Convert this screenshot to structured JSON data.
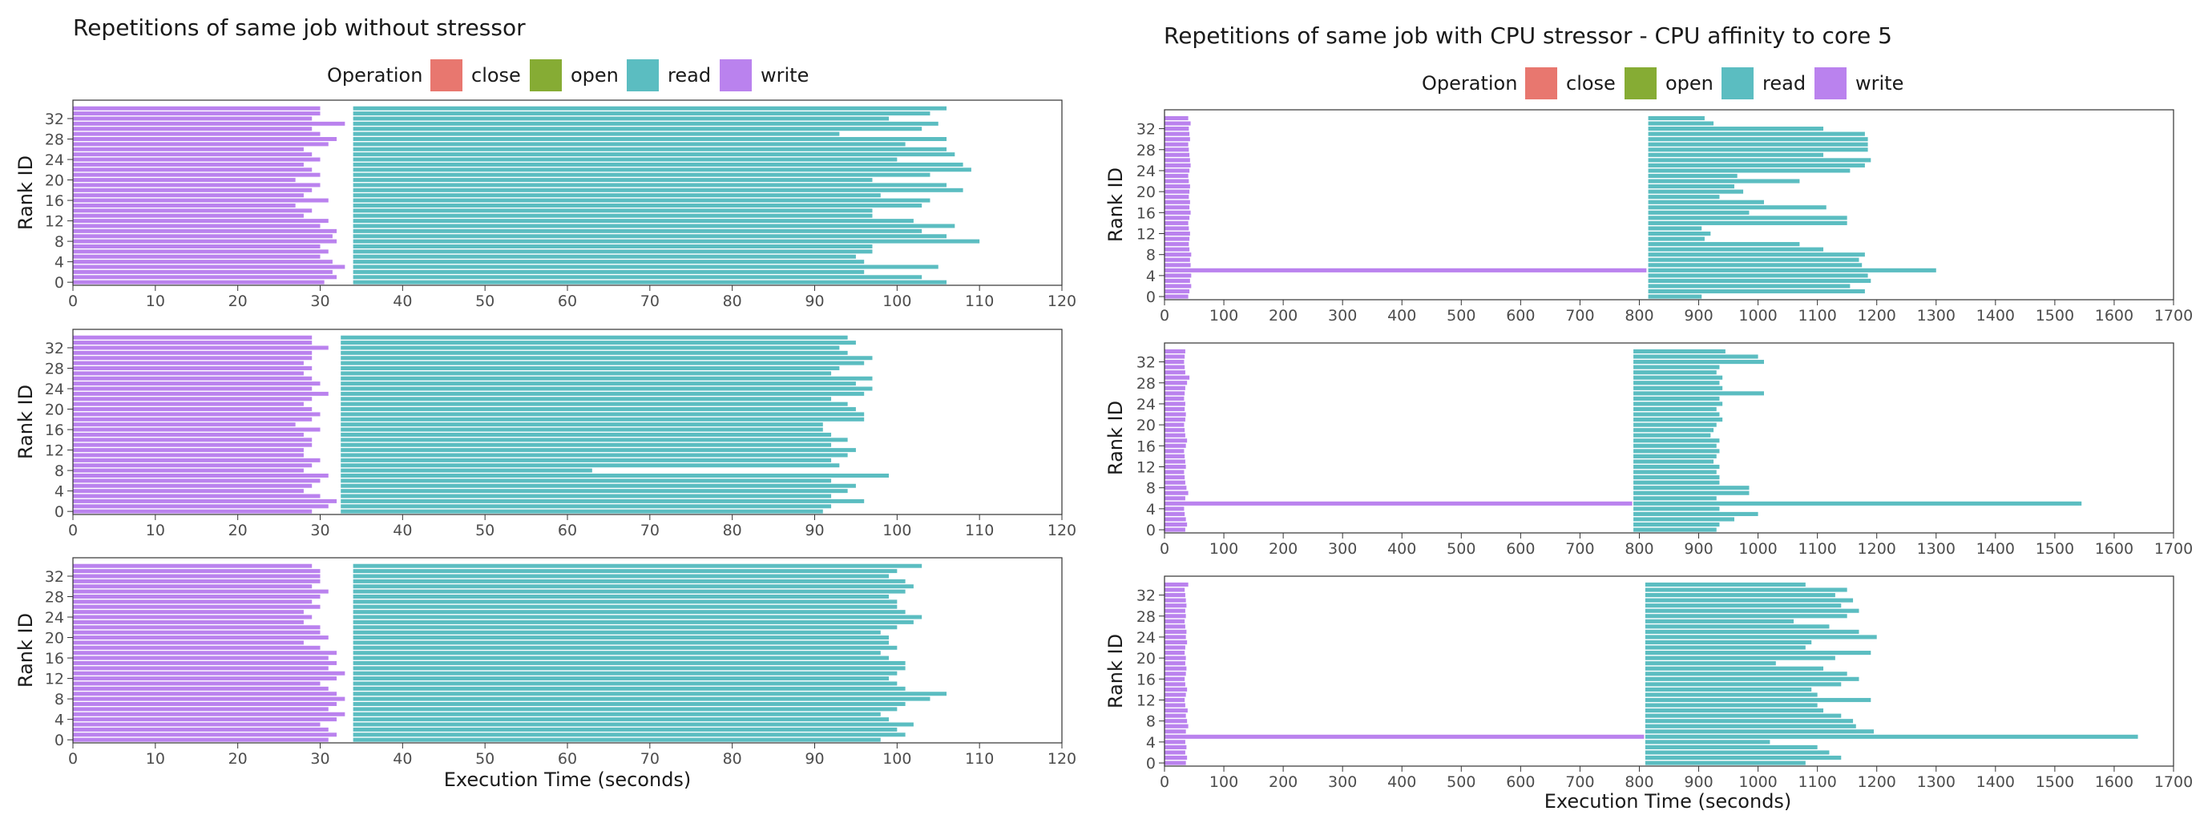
{
  "colors": {
    "close": "#E8776F",
    "open": "#86AC34",
    "read": "#5BBDC1",
    "write": "#BA82EE",
    "axis_text": "#4d4d4d",
    "panel_border": "#333333"
  },
  "legend": {
    "title": "Operation",
    "items": [
      {
        "key": "close",
        "label": "close"
      },
      {
        "key": "open",
        "label": "open"
      },
      {
        "key": "read",
        "label": "read"
      },
      {
        "key": "write",
        "label": "write"
      }
    ]
  },
  "chart_data": [
    {
      "type": "bar",
      "title": "Repetitions of same job without stressor",
      "xlabel": "Execution Time (seconds)",
      "ylabel": "Rank ID",
      "xlim": [
        0,
        120
      ],
      "ylim": [
        -0.6,
        35.6
      ],
      "xticks": [
        0,
        10,
        20,
        30,
        40,
        50,
        60,
        70,
        80,
        90,
        100,
        110,
        120
      ],
      "yticks": [
        0,
        4,
        8,
        12,
        16,
        20,
        24,
        28,
        32
      ],
      "grid": false,
      "legend_position": "top",
      "panels": [
        {
          "write_start": 0,
          "read_start": 34,
          "write_end": [
            30.5,
            32,
            31.5,
            33,
            31.5,
            30,
            31,
            30,
            32,
            31.5,
            32,
            30,
            31,
            28,
            29,
            27,
            31,
            28,
            29,
            30,
            27,
            30,
            29,
            28,
            30,
            29,
            28,
            31,
            32,
            30,
            29,
            33,
            29,
            30,
            30
          ],
          "read_end": [
            106,
            103,
            96,
            105,
            96,
            95,
            97,
            97,
            110,
            106,
            103,
            107,
            102,
            97,
            97,
            103,
            104,
            98,
            108,
            106,
            97,
            104,
            109,
            108,
            100,
            107,
            106,
            101,
            106,
            93,
            103,
            105,
            99,
            104,
            106
          ]
        },
        {
          "write_start": 0,
          "read_start": 32.5,
          "write_end": [
            29,
            31,
            32,
            30,
            28,
            29,
            30,
            31,
            28,
            29,
            30,
            28,
            28,
            29,
            29,
            28,
            30,
            27,
            29,
            30,
            29,
            28,
            29,
            31,
            29,
            30,
            29,
            28,
            29,
            28,
            29,
            29,
            31,
            29,
            29
          ],
          "read_end": [
            91,
            92,
            96,
            92,
            94,
            95,
            92,
            99,
            63,
            93,
            92,
            94,
            95,
            92,
            94,
            92,
            91,
            91,
            96,
            96,
            95,
            94,
            92,
            96,
            97,
            95,
            97,
            92,
            93,
            96,
            97,
            94,
            93,
            95,
            94
          ]
        },
        {
          "write_start": 0,
          "read_start": 34,
          "write_end": [
            31,
            32,
            31,
            30,
            32,
            33,
            31,
            32,
            33,
            32,
            31,
            30,
            32,
            33,
            31,
            32,
            31,
            32,
            30,
            28,
            31,
            30,
            30,
            28,
            29,
            28,
            30,
            29,
            30,
            31,
            29,
            30,
            30,
            30,
            29
          ],
          "read_end": [
            98,
            101,
            100,
            102,
            99,
            98,
            100,
            101,
            104,
            106,
            101,
            100,
            99,
            100,
            101,
            101,
            99,
            98,
            100,
            99,
            99,
            98,
            100,
            102,
            103,
            101,
            100,
            100,
            99,
            101,
            102,
            101,
            99,
            100,
            103
          ]
        }
      ]
    },
    {
      "type": "bar",
      "title": "Repetitions of same job with CPU stressor - CPU affinity to core 5",
      "xlabel": "Execution Time (seconds)",
      "ylabel": "Rank ID",
      "xlim": [
        0,
        1700
      ],
      "ylim": [
        -0.6,
        35.6
      ],
      "xticks": [
        0,
        100,
        200,
        300,
        400,
        500,
        600,
        700,
        800,
        900,
        1000,
        1100,
        1200,
        1300,
        1400,
        1500,
        1600,
        1700
      ],
      "yticks": [
        0,
        4,
        8,
        12,
        16,
        20,
        24,
        28,
        32
      ],
      "grid": false,
      "legend_position": "top",
      "panels": [
        {
          "write_start": 0,
          "read_start": 815,
          "stressed_rank": 5,
          "write_end": [
            40,
            42,
            45,
            43,
            45,
            812,
            44,
            43,
            45,
            42,
            41,
            42,
            43,
            41,
            40,
            42,
            44,
            42,
            43,
            41,
            42,
            43,
            41,
            40,
            42,
            44,
            43,
            42,
            41,
            40,
            43,
            42,
            41,
            44,
            40
          ],
          "read_end": [
            905,
            1180,
            1155,
            1190,
            1185,
            1300,
            1175,
            1170,
            1180,
            1110,
            1070,
            910,
            920,
            905,
            1150,
            1150,
            985,
            1115,
            1010,
            935,
            975,
            960,
            1070,
            965,
            1155,
            1180,
            1190,
            1110,
            1185,
            1185,
            1185,
            1180,
            1110,
            925,
            910
          ]
        },
        {
          "write_start": 0,
          "read_start": 790,
          "stressed_rank": 5,
          "write_end": [
            35,
            38,
            36,
            34,
            33,
            788,
            35,
            40,
            37,
            35,
            34,
            33,
            36,
            35,
            34,
            33,
            36,
            38,
            35,
            34,
            33,
            35,
            36,
            34,
            35,
            33,
            34,
            35,
            38,
            42,
            35,
            34,
            33,
            34,
            35
          ],
          "read_end": [
            930,
            935,
            960,
            1000,
            935,
            1545,
            930,
            985,
            985,
            935,
            935,
            930,
            935,
            925,
            930,
            935,
            930,
            935,
            920,
            925,
            930,
            940,
            935,
            930,
            940,
            935,
            1010,
            940,
            935,
            940,
            930,
            935,
            1010,
            1000,
            945
          ]
        },
        {
          "write_start": 0,
          "read_start": 810,
          "stressed_rank": 5,
          "write_end": [
            36,
            38,
            35,
            37,
            35,
            808,
            36,
            40,
            38,
            36,
            39,
            35,
            34,
            36,
            38,
            35,
            34,
            36,
            37,
            35,
            36,
            34,
            35,
            38,
            36,
            37,
            35,
            34,
            36,
            35,
            37,
            36,
            35,
            34,
            40
          ],
          "read_end": [
            1080,
            1140,
            1120,
            1100,
            1020,
            1640,
            1195,
            1165,
            1160,
            1140,
            1110,
            1100,
            1190,
            1100,
            1090,
            1140,
            1170,
            1150,
            1110,
            1030,
            1130,
            1190,
            1080,
            1090,
            1200,
            1170,
            1120,
            1060,
            1150,
            1170,
            1140,
            1160,
            1130,
            1150,
            1080
          ]
        }
      ]
    }
  ]
}
